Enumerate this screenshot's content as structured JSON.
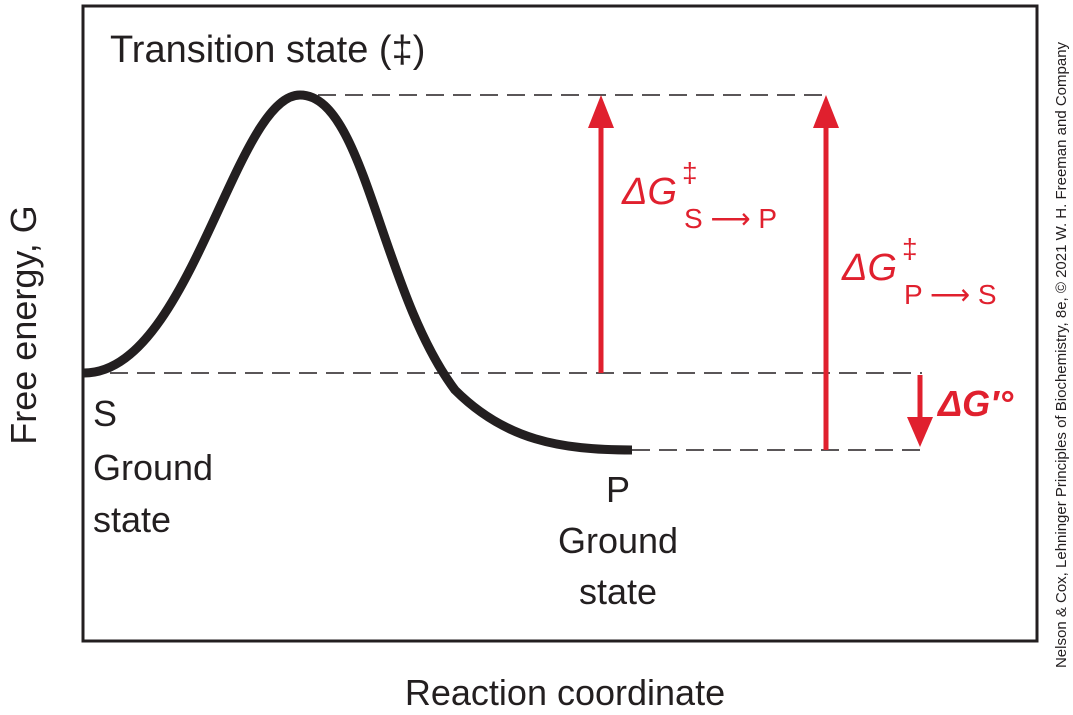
{
  "diagram": {
    "transition_state_label": "Transition state (‡)",
    "s_letter": "S",
    "s_ground": "Ground",
    "s_state": "state",
    "p_letter": "P",
    "p_ground": "Ground",
    "p_state": "state",
    "ylabel": "Free energy, G",
    "xlabel": "Reaction coordinate",
    "dg_s_to_p": {
      "symbol": "ΔG",
      "superscript": "‡",
      "subscript": "S ⟶ P"
    },
    "dg_p_to_s": {
      "symbol": "ΔG",
      "superscript": "‡",
      "subscript": "P ⟶ S"
    },
    "dg_standard": "ΔG′°",
    "credit": "Nelson & Cox, Lehninger Principles of Biochemistry, 8e, © 2021 W. H. Freeman and Company"
  },
  "colors": {
    "accent": "#e0202e",
    "ink": "#231f20"
  }
}
